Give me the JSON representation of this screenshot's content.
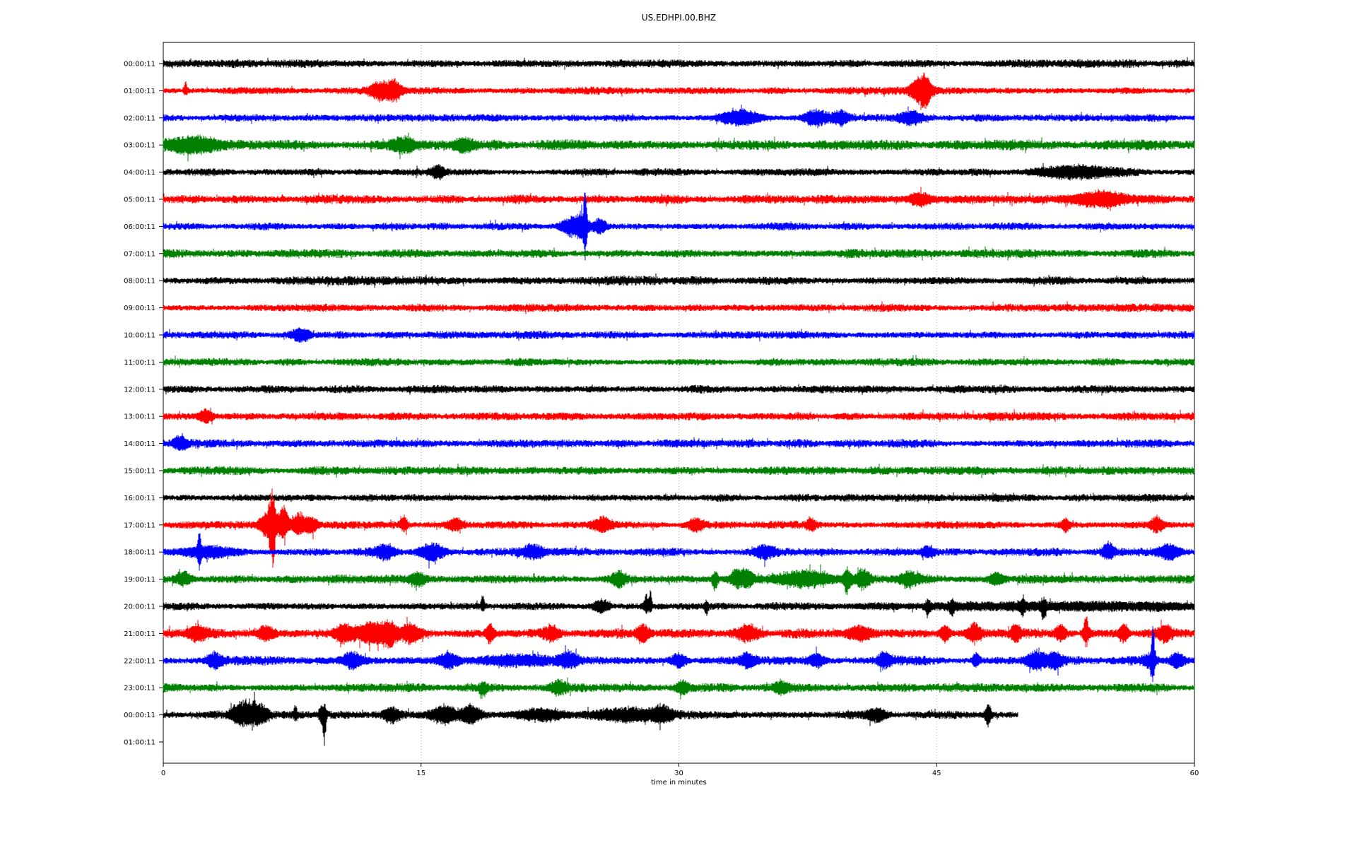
{
  "chart_data": {
    "type": "line",
    "subtype": "seismogram-dayplot",
    "title": "US.EDHPI.00.BHZ",
    "xlabel": "time in minutes",
    "x_range": [
      0,
      60
    ],
    "x_ticks": [
      "0",
      "15",
      "30",
      "45",
      "60"
    ],
    "x_tick_values": [
      0,
      15,
      30,
      45,
      60
    ],
    "grid_minutes": [
      15,
      30,
      45
    ],
    "grid_on": true,
    "grid_color": "#b0b0b0",
    "border_color": "#000000",
    "trace_color_cycle": [
      "#000000",
      "#ff0000",
      "#0000ff",
      "#008000"
    ],
    "rows": [
      {
        "label": "00:00:11",
        "color": "#000000",
        "amp": 6.5,
        "end": 60,
        "events": []
      },
      {
        "label": "01:00:11",
        "color": "#ff0000",
        "amp": 6,
        "end": 60,
        "events": [
          {
            "t": 1.3,
            "w": 0.08,
            "au": 12,
            "ad": 6
          },
          {
            "t": 12.7,
            "w": 0.5,
            "au": 13,
            "ad": 13
          },
          {
            "t": 13.5,
            "w": 0.25,
            "au": 10,
            "ad": 11
          },
          {
            "t": 43.8,
            "w": 0.3,
            "au": 10,
            "ad": 10
          },
          {
            "t": 44.3,
            "w": 0.3,
            "au": 20,
            "ad": 22
          }
        ]
      },
      {
        "label": "02:00:11",
        "color": "#0000ff",
        "amp": 6,
        "end": 60,
        "events": [
          {
            "t": 33.6,
            "w": 0.8,
            "au": 9,
            "ad": 9
          },
          {
            "t": 38,
            "w": 0.5,
            "au": 10,
            "ad": 10
          },
          {
            "t": 39.4,
            "w": 0.3,
            "au": 9,
            "ad": 9
          },
          {
            "t": 43.5,
            "w": 0.5,
            "au": 9,
            "ad": 9
          }
        ]
      },
      {
        "label": "03:00:11",
        "color": "#008000",
        "amp": 8,
        "end": 60,
        "events": [
          {
            "t": 1.8,
            "w": 1.0,
            "au": 10,
            "ad": 11
          },
          {
            "t": 14,
            "w": 0.5,
            "au": 9,
            "ad": 9
          },
          {
            "t": 17.5,
            "w": 0.4,
            "au": 8,
            "ad": 10
          }
        ]
      },
      {
        "label": "04:00:11",
        "color": "#000000",
        "amp": 6,
        "end": 60,
        "events": [
          {
            "t": 16,
            "w": 0.3,
            "au": 8,
            "ad": 8
          },
          {
            "t": 53,
            "w": 1.5,
            "au": 7,
            "ad": 7
          }
        ]
      },
      {
        "label": "05:00:11",
        "color": "#ff0000",
        "amp": 7,
        "end": 60,
        "events": [
          {
            "t": 44,
            "w": 0.4,
            "au": 8,
            "ad": 8
          },
          {
            "t": 54.5,
            "w": 1.2,
            "au": 9,
            "ad": 9
          }
        ]
      },
      {
        "label": "06:00:11",
        "color": "#0000ff",
        "amp": 6,
        "end": 60,
        "events": [
          {
            "t": 23.8,
            "w": 0.45,
            "au": 13,
            "ad": 13
          },
          {
            "t": 24.4,
            "w": 0.25,
            "au": 15,
            "ad": 15
          },
          {
            "t": 24.55,
            "w": 0.06,
            "au": 39,
            "ad": 31
          },
          {
            "t": 25.4,
            "w": 0.25,
            "au": 10,
            "ad": 10
          }
        ]
      },
      {
        "label": "07:00:11",
        "color": "#008000",
        "amp": 7,
        "end": 60,
        "events": []
      },
      {
        "label": "08:00:11",
        "color": "#000000",
        "amp": 7,
        "end": 60,
        "events": []
      },
      {
        "label": "09:00:11",
        "color": "#ff0000",
        "amp": 6,
        "end": 60,
        "events": []
      },
      {
        "label": "10:00:11",
        "color": "#0000ff",
        "amp": 6,
        "end": 60,
        "events": [
          {
            "t": 8,
            "w": 0.4,
            "au": 8,
            "ad": 8
          }
        ]
      },
      {
        "label": "11:00:11",
        "color": "#008000",
        "amp": 6,
        "end": 60,
        "events": []
      },
      {
        "label": "12:00:11",
        "color": "#000000",
        "amp": 6.5,
        "end": 60,
        "events": []
      },
      {
        "label": "13:00:11",
        "color": "#ff0000",
        "amp": 6.5,
        "end": 60,
        "events": [
          {
            "t": 2.5,
            "w": 0.3,
            "au": 9,
            "ad": 9
          }
        ]
      },
      {
        "label": "14:00:11",
        "color": "#0000ff",
        "amp": 6.5,
        "end": 60,
        "events": [
          {
            "t": 1,
            "w": 0.3,
            "au": 8,
            "ad": 8
          }
        ]
      },
      {
        "label": "15:00:11",
        "color": "#008000",
        "amp": 6.5,
        "end": 60,
        "events": []
      },
      {
        "label": "16:00:11",
        "color": "#000000",
        "amp": 6,
        "end": 60,
        "events": []
      },
      {
        "label": "17:00:11",
        "color": "#ff0000",
        "amp": 6,
        "end": 60,
        "events": [
          {
            "t": 6.2,
            "w": 0.35,
            "au": 20,
            "ad": 18
          },
          {
            "t": 6.35,
            "w": 0.12,
            "au": 34,
            "ad": 46
          },
          {
            "t": 7.0,
            "w": 0.2,
            "au": 26,
            "ad": 16
          },
          {
            "t": 7.9,
            "w": 0.25,
            "au": 16,
            "ad": 12
          },
          {
            "t": 8.6,
            "w": 0.3,
            "au": 10,
            "ad": 10
          },
          {
            "t": 14,
            "w": 0.15,
            "au": 10,
            "ad": 8
          },
          {
            "t": 17,
            "w": 0.3,
            "au": 8,
            "ad": 8
          },
          {
            "t": 25.6,
            "w": 0.35,
            "au": 10,
            "ad": 9
          },
          {
            "t": 31,
            "w": 0.3,
            "au": 8,
            "ad": 8
          },
          {
            "t": 37.7,
            "w": 0.2,
            "au": 8,
            "ad": 8
          },
          {
            "t": 52.5,
            "w": 0.2,
            "au": 8,
            "ad": 8
          },
          {
            "t": 57.8,
            "w": 0.25,
            "au": 9,
            "ad": 9
          }
        ]
      },
      {
        "label": "18:00:11",
        "color": "#0000ff",
        "amp": 6.5,
        "end": 60,
        "events": [
          {
            "t": 2.1,
            "w": 0.06,
            "au": 27,
            "ad": 18
          },
          {
            "t": 2.5,
            "w": 1.0,
            "au": 8,
            "ad": 8
          },
          {
            "t": 12.9,
            "w": 0.4,
            "au": 9,
            "ad": 9
          },
          {
            "t": 15.6,
            "w": 0.5,
            "au": 12,
            "ad": 12
          },
          {
            "t": 21.5,
            "w": 0.4,
            "au": 8,
            "ad": 8
          },
          {
            "t": 35,
            "w": 0.4,
            "au": 8,
            "ad": 8
          },
          {
            "t": 44.5,
            "w": 0.3,
            "au": 8,
            "ad": 8
          },
          {
            "t": 55,
            "w": 0.25,
            "au": 12,
            "ad": 10
          },
          {
            "t": 58.6,
            "w": 0.4,
            "au": 10,
            "ad": 10
          }
        ]
      },
      {
        "label": "19:00:11",
        "color": "#008000",
        "amp": 7,
        "end": 60,
        "events": [
          {
            "t": 1.2,
            "w": 0.3,
            "au": 10,
            "ad": 8
          },
          {
            "t": 14.8,
            "w": 0.3,
            "au": 8,
            "ad": 8
          },
          {
            "t": 26.5,
            "w": 0.3,
            "au": 8,
            "ad": 8
          },
          {
            "t": 32.1,
            "w": 0.12,
            "au": 10,
            "ad": 16
          },
          {
            "t": 33.4,
            "w": 0.3,
            "au": 12,
            "ad": 10
          },
          {
            "t": 34,
            "w": 0.2,
            "au": 12,
            "ad": 8
          },
          {
            "t": 37.5,
            "w": 1.0,
            "au": 10,
            "ad": 9
          },
          {
            "t": 39.8,
            "w": 0.15,
            "au": 14,
            "ad": 20
          },
          {
            "t": 40.7,
            "w": 0.3,
            "au": 12,
            "ad": 12
          },
          {
            "t": 43.4,
            "w": 0.4,
            "au": 10,
            "ad": 10
          },
          {
            "t": 48.5,
            "w": 0.3,
            "au": 8,
            "ad": 8
          }
        ]
      },
      {
        "label": "20:00:11",
        "color": "#000000",
        "amp": 6,
        "end": 60,
        "events": [
          {
            "t": 18.6,
            "w": 0.07,
            "au": 16,
            "ad": 6
          },
          {
            "t": 25.5,
            "w": 0.3,
            "au": 8,
            "ad": 8
          },
          {
            "t": 28.1,
            "w": 0.1,
            "au": 14,
            "ad": 8
          },
          {
            "t": 28.35,
            "w": 0.07,
            "au": 18,
            "ad": 6
          },
          {
            "t": 31.6,
            "w": 0.08,
            "au": 6,
            "ad": 14
          },
          {
            "t": 44.5,
            "w": 0.1,
            "au": 8,
            "ad": 15
          },
          {
            "t": 45.9,
            "w": 0.1,
            "au": 8,
            "ad": 13
          },
          {
            "t": 50,
            "w": 0.1,
            "au": 8,
            "ad": 11
          },
          {
            "t": 51.2,
            "w": 0.1,
            "au": 8,
            "ad": 13
          },
          {
            "t": 53,
            "w": 6,
            "au": 3.5,
            "ad": 3.5
          }
        ]
      },
      {
        "label": "21:00:11",
        "color": "#ff0000",
        "amp": 8,
        "end": 60,
        "events": [
          {
            "t": 2,
            "w": 0.4,
            "au": 10,
            "ad": 10
          },
          {
            "t": 6,
            "w": 0.3,
            "au": 9,
            "ad": 9
          },
          {
            "t": 10.5,
            "w": 0.4,
            "au": 11,
            "ad": 11
          },
          {
            "t": 12.3,
            "w": 0.7,
            "au": 13,
            "ad": 13
          },
          {
            "t": 13.2,
            "w": 0.3,
            "au": 12,
            "ad": 12
          },
          {
            "t": 14.4,
            "w": 0.4,
            "au": 12,
            "ad": 12
          },
          {
            "t": 19,
            "w": 0.15,
            "au": 12,
            "ad": 12
          },
          {
            "t": 22.6,
            "w": 0.3,
            "au": 9,
            "ad": 9
          },
          {
            "t": 27.9,
            "w": 0.25,
            "au": 13,
            "ad": 13
          },
          {
            "t": 34,
            "w": 0.4,
            "au": 9,
            "ad": 9
          },
          {
            "t": 40.5,
            "w": 0.5,
            "au": 9,
            "ad": 9
          },
          {
            "t": 45.5,
            "w": 0.2,
            "au": 11,
            "ad": 11
          },
          {
            "t": 47.2,
            "w": 0.25,
            "au": 13,
            "ad": 12
          },
          {
            "t": 49.6,
            "w": 0.2,
            "au": 11,
            "ad": 10
          },
          {
            "t": 52.2,
            "w": 0.2,
            "au": 11,
            "ad": 10
          },
          {
            "t": 53.7,
            "w": 0.12,
            "au": 22,
            "ad": 16
          },
          {
            "t": 55.9,
            "w": 0.2,
            "au": 13,
            "ad": 10
          },
          {
            "t": 58.3,
            "w": 0.3,
            "au": 10,
            "ad": 10
          }
        ]
      },
      {
        "label": "22:00:11",
        "color": "#0000ff",
        "amp": 7,
        "end": 60,
        "events": [
          {
            "t": 3,
            "w": 0.3,
            "au": 9,
            "ad": 9
          },
          {
            "t": 11,
            "w": 0.4,
            "au": 10,
            "ad": 9
          },
          {
            "t": 16.6,
            "w": 0.4,
            "au": 11,
            "ad": 10
          },
          {
            "t": 20.5,
            "w": 1.2,
            "au": 6,
            "ad": 6
          },
          {
            "t": 23.6,
            "w": 0.4,
            "au": 11,
            "ad": 10
          },
          {
            "t": 30,
            "w": 0.3,
            "au": 9,
            "ad": 9
          },
          {
            "t": 34,
            "w": 0.3,
            "au": 9,
            "ad": 9
          },
          {
            "t": 38,
            "w": 0.3,
            "au": 8,
            "ad": 8
          },
          {
            "t": 42,
            "w": 0.3,
            "au": 10,
            "ad": 9
          },
          {
            "t": 47.3,
            "w": 0.15,
            "au": 12,
            "ad": 8
          },
          {
            "t": 50.8,
            "w": 0.4,
            "au": 12,
            "ad": 12
          },
          {
            "t": 51.9,
            "w": 0.3,
            "au": 10,
            "ad": 10
          },
          {
            "t": 57.4,
            "w": 0.3,
            "au": 10,
            "ad": 10
          },
          {
            "t": 57.6,
            "w": 0.07,
            "au": 45,
            "ad": 22
          },
          {
            "t": 59,
            "w": 0.3,
            "au": 10,
            "ad": 9
          }
        ]
      },
      {
        "label": "23:00:11",
        "color": "#008000",
        "amp": 7,
        "end": 60,
        "events": [
          {
            "t": 18.6,
            "w": 0.15,
            "au": 6,
            "ad": 11
          },
          {
            "t": 23,
            "w": 0.3,
            "au": 9,
            "ad": 9
          },
          {
            "t": 30.2,
            "w": 0.25,
            "au": 8,
            "ad": 8
          },
          {
            "t": 36,
            "w": 0.3,
            "au": 8,
            "ad": 8
          }
        ]
      },
      {
        "label": "00:00:11",
        "color": "#000000",
        "amp": 7,
        "end": 49.7,
        "events": [
          {
            "t": 4.3,
            "w": 0.3,
            "au": 12,
            "ad": 10
          },
          {
            "t": 5.0,
            "w": 0.35,
            "au": 18,
            "ad": 13
          },
          {
            "t": 5.7,
            "w": 0.3,
            "au": 11,
            "ad": 10
          },
          {
            "t": 7.7,
            "w": 0.08,
            "au": 11,
            "ad": 6
          },
          {
            "t": 9.2,
            "w": 0.1,
            "au": 12,
            "ad": 8
          },
          {
            "t": 9.38,
            "w": 0.07,
            "au": 14,
            "ad": 42
          },
          {
            "t": 13.3,
            "w": 0.3,
            "au": 9,
            "ad": 9
          },
          {
            "t": 16.3,
            "w": 0.5,
            "au": 13,
            "ad": 12
          },
          {
            "t": 17.9,
            "w": 0.4,
            "au": 11,
            "ad": 10
          },
          {
            "t": 22,
            "w": 1.0,
            "au": 6,
            "ad": 6
          },
          {
            "t": 27,
            "w": 1.2,
            "au": 8,
            "ad": 8
          },
          {
            "t": 29,
            "w": 0.4,
            "au": 10,
            "ad": 9
          },
          {
            "t": 41.5,
            "w": 0.4,
            "au": 8,
            "ad": 8
          },
          {
            "t": 48,
            "w": 0.12,
            "au": 14,
            "ad": 17
          }
        ]
      },
      {
        "label": "01:00:11",
        "color": "#ff0000",
        "amp": 0,
        "end": 0,
        "events": []
      }
    ]
  }
}
